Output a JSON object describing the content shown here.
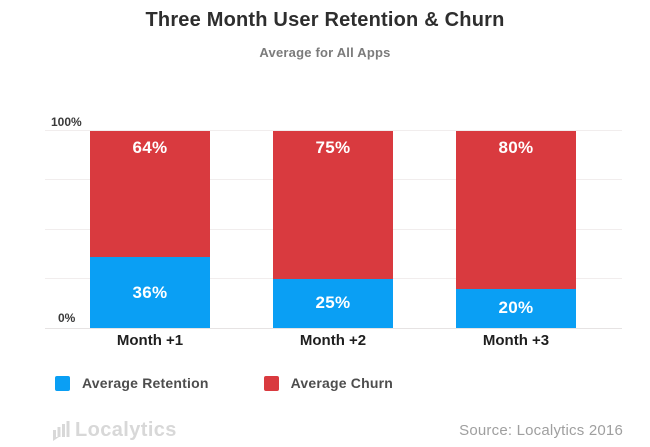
{
  "chart_data": {
    "type": "bar",
    "stacked": true,
    "title": "Three Month User Retention & Churn",
    "subtitle": "Average for All Apps",
    "categories": [
      "Month +1",
      "Month +2",
      "Month +3"
    ],
    "series": [
      {
        "name": "Average Retention",
        "color": "#0a9ff4",
        "values": [
          36,
          25,
          20
        ]
      },
      {
        "name": "Average Churn",
        "color": "#d93a3f",
        "values": [
          64,
          75,
          80
        ]
      }
    ],
    "value_suffix": "%",
    "value_label_color": "#ffffff",
    "ylim": [
      0,
      100
    ],
    "yticks": [
      "0%",
      "100%"
    ],
    "gridline_percents": [
      25,
      50,
      75,
      100
    ],
    "grid": true,
    "legend_position": "bottom-left"
  },
  "footer": {
    "logo_text": "Localytics",
    "source": "Source: Localytics 2016"
  }
}
